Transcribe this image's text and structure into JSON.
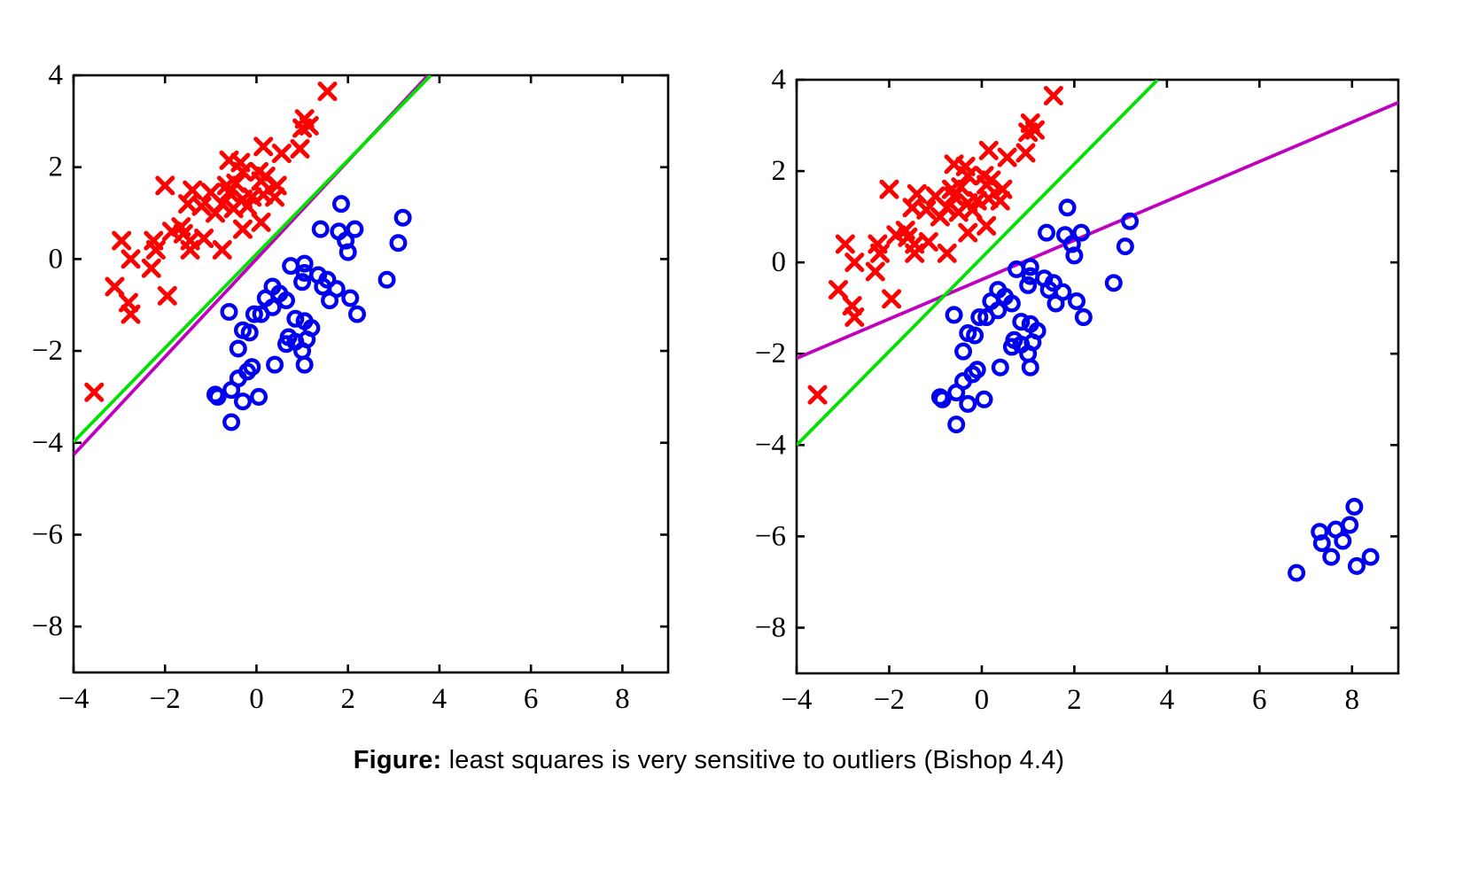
{
  "caption": {
    "label": "Figure:",
    "text": "least squares is very sensitive to outliers (Bishop 4.4)"
  },
  "colors": {
    "red_x": "#FF0000",
    "blue_o": "#0000F0",
    "green_line": "#00E100",
    "magenta_line": "#C000C0",
    "axis": "#000000",
    "background": "#FFFFFF"
  },
  "chart_data": {
    "type": "scatter",
    "title": "",
    "xlabel": "",
    "ylabel": "",
    "legend": null,
    "axes": {
      "xlim": [
        -4,
        9
      ],
      "ylim": [
        -9,
        4
      ],
      "xticks": [
        -4,
        -2,
        0,
        2,
        4,
        6,
        8
      ],
      "yticks": [
        4,
        2,
        0,
        -2,
        -4,
        -6,
        -8
      ],
      "grid": false
    },
    "datasets": {
      "class1_red_x": [
        [
          1.55,
          3.65
        ],
        [
          1.05,
          3.05
        ],
        [
          1.15,
          2.9
        ],
        [
          1.0,
          2.85
        ],
        [
          0.15,
          2.45
        ],
        [
          0.55,
          2.3
        ],
        [
          0.95,
          2.4
        ],
        [
          -0.6,
          2.15
        ],
        [
          -0.35,
          2.1
        ],
        [
          -0.3,
          1.9
        ],
        [
          0.05,
          1.9
        ],
        [
          0.1,
          1.7
        ],
        [
          -2.0,
          1.6
        ],
        [
          -1.4,
          1.5
        ],
        [
          -1.0,
          1.45
        ],
        [
          -0.65,
          1.6
        ],
        [
          -0.45,
          1.65
        ],
        [
          -0.6,
          1.45
        ],
        [
          0.2,
          1.8
        ],
        [
          0.45,
          1.6
        ],
        [
          0.4,
          1.35
        ],
        [
          0.15,
          1.4
        ],
        [
          -0.1,
          1.35
        ],
        [
          -0.3,
          1.3
        ],
        [
          -0.2,
          1.15
        ],
        [
          -0.5,
          1.1
        ],
        [
          -0.75,
          1.2
        ],
        [
          -0.9,
          1.0
        ],
        [
          -1.2,
          1.15
        ],
        [
          -1.5,
          1.2
        ],
        [
          0.1,
          0.8
        ],
        [
          -0.3,
          0.65
        ],
        [
          -1.65,
          0.7
        ],
        [
          -1.85,
          0.6
        ],
        [
          -1.6,
          0.55
        ],
        [
          -1.45,
          0.4
        ],
        [
          -1.15,
          0.45
        ],
        [
          -2.95,
          0.4
        ],
        [
          -2.25,
          0.4
        ],
        [
          -2.2,
          0.2
        ],
        [
          -1.45,
          0.2
        ],
        [
          -0.75,
          0.2
        ],
        [
          -2.75,
          0.0
        ],
        [
          -2.3,
          -0.2
        ],
        [
          -3.1,
          -0.6
        ],
        [
          -2.8,
          -0.95
        ],
        [
          -2.75,
          -1.2
        ],
        [
          -1.95,
          -0.8
        ],
        [
          -3.55,
          -2.9
        ]
      ],
      "class2_blue_o": [
        [
          1.85,
          1.2
        ],
        [
          1.4,
          0.65
        ],
        [
          1.8,
          0.6
        ],
        [
          2.15,
          0.65
        ],
        [
          1.95,
          0.4
        ],
        [
          2.0,
          0.15
        ],
        [
          3.2,
          0.9
        ],
        [
          3.1,
          0.35
        ],
        [
          1.05,
          -0.1
        ],
        [
          0.75,
          -0.15
        ],
        [
          1.05,
          -0.3
        ],
        [
          1.35,
          -0.35
        ],
        [
          1.55,
          -0.45
        ],
        [
          1.0,
          -0.5
        ],
        [
          1.45,
          -0.6
        ],
        [
          1.75,
          -0.65
        ],
        [
          2.85,
          -0.45
        ],
        [
          2.05,
          -0.85
        ],
        [
          1.6,
          -0.9
        ],
        [
          0.35,
          -0.6
        ],
        [
          0.5,
          -0.75
        ],
        [
          0.2,
          -0.85
        ],
        [
          0.65,
          -0.9
        ],
        [
          2.2,
          -1.2
        ],
        [
          -0.6,
          -1.15
        ],
        [
          -0.05,
          -1.2
        ],
        [
          0.1,
          -1.2
        ],
        [
          0.35,
          -1.05
        ],
        [
          0.85,
          -1.3
        ],
        [
          1.05,
          -1.35
        ],
        [
          1.2,
          -1.5
        ],
        [
          -0.3,
          -1.55
        ],
        [
          -0.15,
          -1.6
        ],
        [
          0.7,
          -1.7
        ],
        [
          0.85,
          -1.8
        ],
        [
          1.1,
          -1.75
        ],
        [
          -0.4,
          -1.95
        ],
        [
          0.65,
          -1.85
        ],
        [
          1.0,
          -2.0
        ],
        [
          -0.1,
          -2.35
        ],
        [
          0.4,
          -2.3
        ],
        [
          1.05,
          -2.3
        ],
        [
          -0.4,
          -2.6
        ],
        [
          -0.2,
          -2.45
        ],
        [
          -0.9,
          -2.95
        ],
        [
          -0.85,
          -3.0
        ],
        [
          -0.55,
          -2.85
        ],
        [
          -0.3,
          -3.1
        ],
        [
          0.05,
          -3.0
        ],
        [
          -0.55,
          -3.55
        ]
      ],
      "class2_outliers_blue_o": [
        [
          8.05,
          -5.35
        ],
        [
          7.3,
          -5.9
        ],
        [
          7.65,
          -5.85
        ],
        [
          7.95,
          -5.75
        ],
        [
          7.35,
          -6.15
        ],
        [
          7.8,
          -6.1
        ],
        [
          7.55,
          -6.45
        ],
        [
          8.1,
          -6.65
        ],
        [
          8.4,
          -6.45
        ],
        [
          6.8,
          -6.8
        ]
      ]
    },
    "panels": [
      {
        "name": "left",
        "series": [
          {
            "dataset": "class1_red_x",
            "marker": "x",
            "color_key": "red_x"
          },
          {
            "dataset": "class2_blue_o",
            "marker": "o",
            "color_key": "blue_o"
          }
        ],
        "lines": [
          {
            "name": "least-squares-line",
            "color_key": "magenta_line",
            "x1": -4,
            "y1": -4.26,
            "x2": 3.75,
            "y2": 4
          },
          {
            "name": "logistic-regression-line",
            "color_key": "green_line",
            "x1": -4,
            "y1": -3.98,
            "x2": 3.81,
            "y2": 4
          }
        ]
      },
      {
        "name": "right",
        "series": [
          {
            "dataset": "class1_red_x",
            "marker": "x",
            "color_key": "red_x"
          },
          {
            "dataset": "class2_blue_o",
            "marker": "o",
            "color_key": "blue_o"
          },
          {
            "dataset": "class2_outliers_blue_o",
            "marker": "o",
            "color_key": "blue_o"
          }
        ],
        "lines": [
          {
            "name": "least-squares-line",
            "color_key": "magenta_line",
            "x1": -4,
            "y1": -2.1,
            "x2": 9,
            "y2": 3.5
          },
          {
            "name": "logistic-regression-line",
            "color_key": "green_line",
            "x1": -4,
            "y1": -4.0,
            "x2": 3.8,
            "y2": 4
          }
        ]
      }
    ]
  }
}
